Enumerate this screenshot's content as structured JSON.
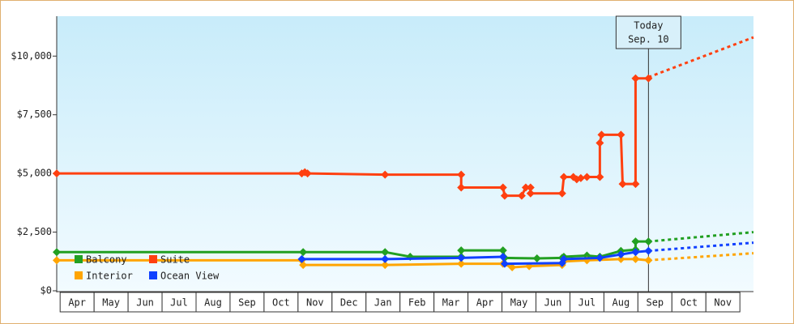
{
  "chart_data": {
    "type": "line",
    "xlim": [
      -0.1,
      20.4
    ],
    "xticks": [
      {
        "value": 0.5,
        "label": "Apr"
      },
      {
        "value": 1.5,
        "label": "May"
      },
      {
        "value": 2.5,
        "label": "Jun"
      },
      {
        "value": 3.5,
        "label": "Jul"
      },
      {
        "value": 4.5,
        "label": "Aug"
      },
      {
        "value": 5.5,
        "label": "Sep"
      },
      {
        "value": 6.5,
        "label": "Oct"
      },
      {
        "value": 7.5,
        "label": "Nov"
      },
      {
        "value": 8.5,
        "label": "Dec"
      },
      {
        "value": 9.5,
        "label": "Jan"
      },
      {
        "value": 10.5,
        "label": "Feb"
      },
      {
        "value": 11.5,
        "label": "Mar"
      },
      {
        "value": 12.5,
        "label": "Apr"
      },
      {
        "value": 13.5,
        "label": "May"
      },
      {
        "value": 14.5,
        "label": "Jun"
      },
      {
        "value": 15.5,
        "label": "Jul"
      },
      {
        "value": 16.5,
        "label": "Aug"
      },
      {
        "value": 17.5,
        "label": "Sep"
      },
      {
        "value": 18.5,
        "label": "Oct"
      },
      {
        "value": 19.5,
        "label": "Nov"
      }
    ],
    "ylim": [
      0,
      11700
    ],
    "yticks": [
      {
        "value": 0,
        "label": "$0"
      },
      {
        "value": 2500,
        "label": "$2,500"
      },
      {
        "value": 5000,
        "label": "$5,000"
      },
      {
        "value": 7500,
        "label": "$7,500"
      },
      {
        "value": 10000,
        "label": "$10,000"
      }
    ],
    "annotation": {
      "x": 17.31,
      "lines": [
        "Today",
        "Sep. 10"
      ]
    },
    "projection_x": [
      17.31,
      20.4
    ],
    "series": [
      {
        "name": "Balcony",
        "color": "#22a022",
        "x": [
          -0.1,
          7.15,
          9.56,
          10.3,
          11.8,
          11.8,
          13.03,
          13.08,
          14.03,
          14.77,
          14.82,
          15.5,
          15.88,
          16.5,
          16.93,
          16.93,
          17.31
        ],
        "values": [
          1650,
          1650,
          1650,
          1450,
          1450,
          1720,
          1720,
          1400,
          1380,
          1400,
          1450,
          1500,
          1450,
          1700,
          1750,
          2100,
          2100
        ],
        "projected": [
          2100,
          2500
        ]
      },
      {
        "name": "Suite",
        "color": "#ff4010",
        "x": [
          -0.1,
          7.11,
          7.2,
          7.28,
          9.56,
          11.8,
          11.8,
          13.03,
          13.08,
          13.58,
          13.7,
          13.84,
          13.84,
          14.77,
          14.82,
          15.1,
          15.2,
          15.32,
          15.5,
          15.88,
          15.88,
          15.93,
          16.5,
          16.55,
          16.93,
          16.93,
          17.31
        ],
        "values": [
          5000,
          5000,
          5050,
          5000,
          4950,
          4950,
          4400,
          4400,
          4050,
          4050,
          4400,
          4400,
          4150,
          4150,
          4850,
          4850,
          4750,
          4800,
          4850,
          4850,
          6300,
          6650,
          6650,
          4550,
          4550,
          9050,
          9050
        ],
        "projected": [
          9100,
          10800
        ]
      },
      {
        "name": "Interior",
        "color": "#ffa500",
        "x": [
          -0.1,
          7.11,
          7.15,
          9.56,
          11.8,
          13.03,
          13.3,
          13.8,
          14.77,
          14.82,
          15.5,
          16.5,
          16.93,
          17.31
        ],
        "values": [
          1300,
          1300,
          1100,
          1100,
          1150,
          1150,
          1000,
          1050,
          1100,
          1250,
          1300,
          1350,
          1350,
          1300
        ],
        "projected": [
          1300,
          1600
        ]
      },
      {
        "name": "Ocean View",
        "color": "#1040ff",
        "x": [
          7.11,
          9.56,
          11.8,
          13.03,
          13.08,
          14.77,
          14.82,
          15.88,
          16.5,
          16.93,
          17.31
        ],
        "values": [
          1350,
          1350,
          1400,
          1450,
          1150,
          1180,
          1350,
          1400,
          1550,
          1650,
          1700
        ],
        "projected": [
          1700,
          2050
        ]
      }
    ]
  }
}
